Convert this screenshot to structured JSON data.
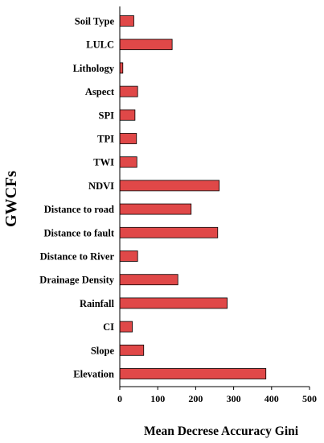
{
  "chart_data": {
    "type": "bar",
    "orientation": "horizontal",
    "title": "",
    "xlabel": "Mean Decrese Accuracy Gini",
    "ylabel": "GWCFs",
    "xlim": [
      0,
      500
    ],
    "xticks": [
      0,
      100,
      200,
      300,
      400,
      500
    ],
    "grid": false,
    "categories": [
      "Soil Type",
      "LULC",
      "Lithology",
      "Aspect",
      "SPI",
      "TPI",
      "TWI",
      "NDVI",
      "Distance to road",
      "Distance to fault",
      "Distance to River",
      "Drainage Density",
      "Rainfall",
      "CI",
      "Slope",
      "Elevation"
    ],
    "values": [
      37,
      138,
      8,
      47,
      40,
      44,
      45,
      262,
      188,
      258,
      47,
      153,
      283,
      33,
      63,
      385
    ],
    "bar_color": "#e04848"
  }
}
